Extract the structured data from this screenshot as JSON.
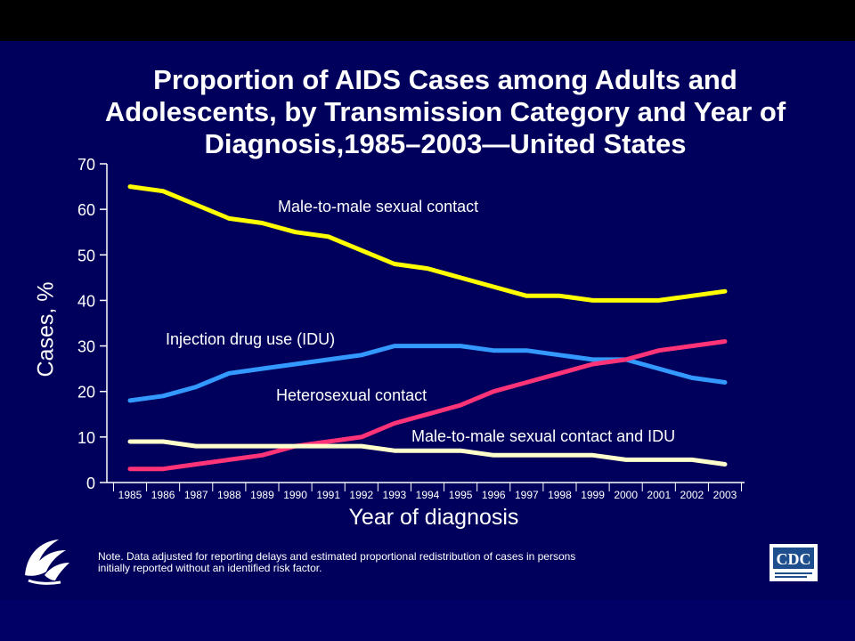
{
  "title_lines": [
    "Proportion of AIDS Cases among Adults and",
    "Adolescents, by Transmission Category and Year of",
    "Diagnosis,1985–2003—United States"
  ],
  "note_lines": [
    "Note. Data adjusted for reporting delays and estimated proportional redistribution of cases in persons",
    "initially reported without an identified risk factor."
  ],
  "logos": {
    "left": "hhs-eagle-icon",
    "right": "cdc-logo-icon",
    "cdc_text": "CDC"
  },
  "colors": {
    "slide_background": "#00005c",
    "axis": "#ffffff",
    "text": "#ffffff"
  },
  "chart_data": {
    "type": "line",
    "title": "Proportion of AIDS Cases among Adults and Adolescents, by Transmission Category and Year of Diagnosis,1985–2003—United States",
    "xlabel": "Year of diagnosis",
    "ylabel": "Cases, %",
    "x": [
      "1985",
      "1986",
      "1987",
      "1988",
      "1989",
      "1990",
      "1991",
      "1992",
      "1993",
      "1994",
      "1995",
      "1996",
      "1997",
      "1998",
      "1999",
      "2000",
      "2001",
      "2002",
      "2003"
    ],
    "ylim": [
      0,
      70
    ],
    "yticks": [
      0,
      10,
      20,
      30,
      40,
      50,
      60,
      70
    ],
    "grid": false,
    "legend": "inline labels",
    "series": [
      {
        "name": "Male-to-male sexual contact",
        "color": "#ffff00",
        "values": [
          65,
          64,
          61,
          58,
          57,
          55,
          54,
          51,
          48,
          47,
          45,
          43,
          41,
          41,
          40,
          40,
          40,
          41,
          42
        ]
      },
      {
        "name": "Injection drug use (IDU)",
        "color": "#3399ff",
        "values": [
          18,
          19,
          21,
          24,
          25,
          26,
          27,
          28,
          30,
          30,
          30,
          29,
          29,
          28,
          27,
          27,
          25,
          23,
          22
        ]
      },
      {
        "name": "Heterosexual contact",
        "color": "#ff3377",
        "values": [
          3,
          3,
          4,
          5,
          6,
          8,
          9,
          10,
          13,
          15,
          17,
          20,
          22,
          24,
          26,
          27,
          29,
          30,
          31
        ]
      },
      {
        "name": "Male-to-male sexual contact and IDU",
        "color": "#ffffcc",
        "values": [
          9,
          9,
          8,
          8,
          8,
          8,
          8,
          8,
          7,
          7,
          7,
          6,
          6,
          6,
          6,
          5,
          5,
          5,
          4
        ]
      }
    ]
  }
}
